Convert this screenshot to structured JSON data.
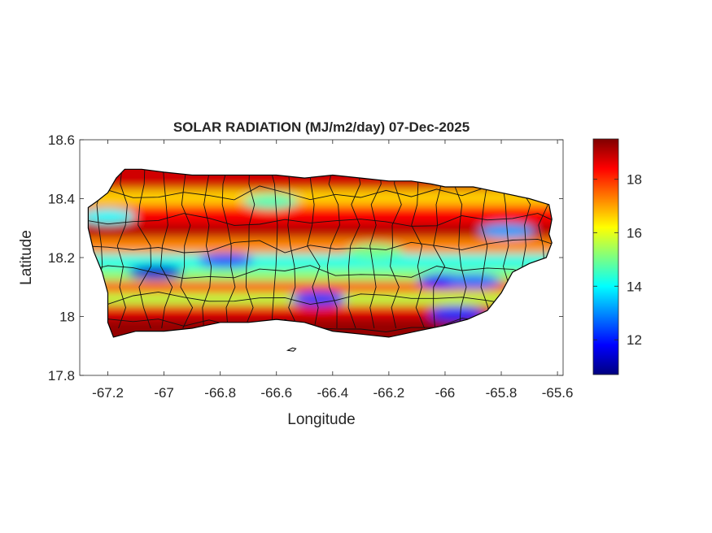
{
  "title": "SOLAR RADIATION (MJ/m2/day) 07-Dec-2025",
  "xlabel": "Longitude",
  "ylabel": "Latitude",
  "xlim": [
    -67.3,
    -65.58
  ],
  "ylim": [
    17.8,
    18.6
  ],
  "x_ticks": [
    {
      "value": -67.2,
      "label": "-67.2"
    },
    {
      "value": -67.0,
      "label": "-67"
    },
    {
      "value": -66.8,
      "label": "-66.8"
    },
    {
      "value": -66.6,
      "label": "-66.6"
    },
    {
      "value": -66.4,
      "label": "-66.4"
    },
    {
      "value": -66.2,
      "label": "-66.2"
    },
    {
      "value": -66.0,
      "label": "-66"
    },
    {
      "value": -65.8,
      "label": "-65.8"
    },
    {
      "value": -65.6,
      "label": "-65.6"
    }
  ],
  "y_ticks": [
    {
      "value": 17.8,
      "label": "17.8"
    },
    {
      "value": 18.0,
      "label": "18"
    },
    {
      "value": 18.2,
      "label": "18.2"
    },
    {
      "value": 18.4,
      "label": "18.4"
    },
    {
      "value": 18.6,
      "label": "18.6"
    }
  ],
  "colorbar": {
    "colormap": "jet",
    "range": [
      10.7,
      19.5
    ],
    "ticks": [
      {
        "value": 12,
        "label": "12"
      },
      {
        "value": 14,
        "label": "14"
      },
      {
        "value": 16,
        "label": "16"
      },
      {
        "value": 18,
        "label": "18"
      }
    ]
  },
  "colors": {
    "outline": "#000000",
    "axis": "#262626",
    "jet": [
      "#00007f",
      "#0000ff",
      "#007fff",
      "#00ffff",
      "#7fff7f",
      "#ffff00",
      "#ff7f00",
      "#ff0000",
      "#7f0000"
    ]
  },
  "island_outline": [
    [
      -67.27,
      18.37
    ],
    [
      -67.24,
      18.39
    ],
    [
      -67.2,
      18.42
    ],
    [
      -67.17,
      18.47
    ],
    [
      -67.14,
      18.5
    ],
    [
      -67.08,
      18.5
    ],
    [
      -67.0,
      18.49
    ],
    [
      -66.9,
      18.48
    ],
    [
      -66.8,
      18.48
    ],
    [
      -66.7,
      18.48
    ],
    [
      -66.6,
      18.48
    ],
    [
      -66.5,
      18.47
    ],
    [
      -66.4,
      18.48
    ],
    [
      -66.3,
      18.47
    ],
    [
      -66.2,
      18.46
    ],
    [
      -66.12,
      18.46
    ],
    [
      -66.05,
      18.45
    ],
    [
      -66.0,
      18.44
    ],
    [
      -65.9,
      18.44
    ],
    [
      -65.8,
      18.42
    ],
    [
      -65.7,
      18.4
    ],
    [
      -65.63,
      18.38
    ],
    [
      -65.62,
      18.33
    ],
    [
      -65.63,
      18.28
    ],
    [
      -65.62,
      18.25
    ],
    [
      -65.64,
      18.2
    ],
    [
      -65.7,
      18.18
    ],
    [
      -65.76,
      18.15
    ],
    [
      -65.8,
      18.08
    ],
    [
      -65.85,
      18.02
    ],
    [
      -65.92,
      17.99
    ],
    [
      -66.0,
      17.97
    ],
    [
      -66.1,
      17.95
    ],
    [
      -66.2,
      17.93
    ],
    [
      -66.3,
      17.94
    ],
    [
      -66.4,
      17.95
    ],
    [
      -66.5,
      17.98
    ],
    [
      -66.6,
      17.99
    ],
    [
      -66.7,
      17.98
    ],
    [
      -66.8,
      17.98
    ],
    [
      -66.9,
      17.96
    ],
    [
      -67.0,
      17.95
    ],
    [
      -67.1,
      17.95
    ],
    [
      -67.18,
      17.93
    ],
    [
      -67.2,
      17.98
    ],
    [
      -67.2,
      18.08
    ],
    [
      -67.22,
      18.15
    ],
    [
      -67.25,
      18.22
    ],
    [
      -67.27,
      18.3
    ],
    [
      -67.27,
      18.37
    ]
  ],
  "bands": [
    {
      "lat": 18.455,
      "value": 18.8
    },
    {
      "lat": 18.405,
      "value": 16.6
    },
    {
      "lat": 18.35,
      "value": 18.4
    },
    {
      "lat": 18.29,
      "value": 19.0
    },
    {
      "lat": 18.24,
      "value": 17.2
    },
    {
      "lat": 18.185,
      "value": 14.2
    },
    {
      "lat": 18.14,
      "value": 15.2
    },
    {
      "lat": 18.1,
      "value": 17.8
    },
    {
      "lat": 18.06,
      "value": 15.6
    },
    {
      "lat": 18.02,
      "value": 18.6
    },
    {
      "lat": 17.97,
      "value": 19.3
    }
  ],
  "anomalies": [
    {
      "lon": -67.03,
      "lat": 18.15,
      "value": 11.4
    },
    {
      "lon": -66.78,
      "lat": 18.19,
      "value": 12.6
    },
    {
      "lon": -66.45,
      "lat": 18.06,
      "value": 12.4
    },
    {
      "lon": -66.0,
      "lat": 18.12,
      "value": 12.0
    },
    {
      "lon": -65.9,
      "lat": 18.12,
      "value": 12.8
    },
    {
      "lon": -65.96,
      "lat": 18.01,
      "value": 12.2
    },
    {
      "lon": -65.78,
      "lat": 18.29,
      "value": 13.2
    },
    {
      "lon": -66.62,
      "lat": 18.39,
      "value": 14.6
    },
    {
      "lon": -67.2,
      "lat": 18.34,
      "value": 14.0
    },
    {
      "lon": -66.25,
      "lat": 18.22,
      "value": 15.0
    }
  ]
}
